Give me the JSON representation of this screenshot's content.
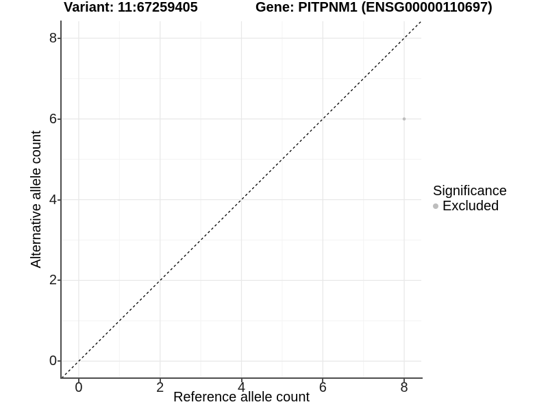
{
  "header": {
    "title_variant": "Variant: 11:67259405",
    "title_gene": "Gene: PITPNM1 (ENSG00000110697)"
  },
  "axes": {
    "x_label": "Reference allele count",
    "y_label": "Alternative allele count"
  },
  "legend": {
    "title": "Significance",
    "entries": [
      {
        "label": "Excluded",
        "color": "#bdbdbd"
      }
    ]
  },
  "colors": {
    "grid_major": "#e8e8e8",
    "grid_minor": "#f3f3f3",
    "axis_line": "#4d4d4d",
    "tick_text": "#1a1a1a",
    "point": "#bdbdbd",
    "reference_line": "#000000",
    "background": "#ffffff"
  },
  "chart_data": {
    "type": "scatter",
    "title": "Variant: 11:67259405  /  Gene: PITPNM1 (ENSG00000110697)",
    "xlabel": "Reference allele count",
    "ylabel": "Alternative allele count",
    "xlim": [
      -0.42,
      8.42
    ],
    "ylim": [
      -0.42,
      8.42
    ],
    "xticks": [
      0,
      2,
      4,
      6,
      8
    ],
    "yticks": [
      0,
      2,
      4,
      6,
      8
    ],
    "xticks_minor": [
      1,
      3,
      5,
      7
    ],
    "yticks_minor": [
      1,
      3,
      5,
      7
    ],
    "grid": true,
    "legend_position": "right",
    "series": [
      {
        "name": "Excluded",
        "color": "#bdbdbd",
        "marker": "circle",
        "points": [
          {
            "x": 8,
            "y": 6
          }
        ]
      }
    ],
    "reference_line": {
      "type": "identity",
      "slope": 1,
      "intercept": 0,
      "style": "dashed",
      "color": "#000000"
    }
  }
}
